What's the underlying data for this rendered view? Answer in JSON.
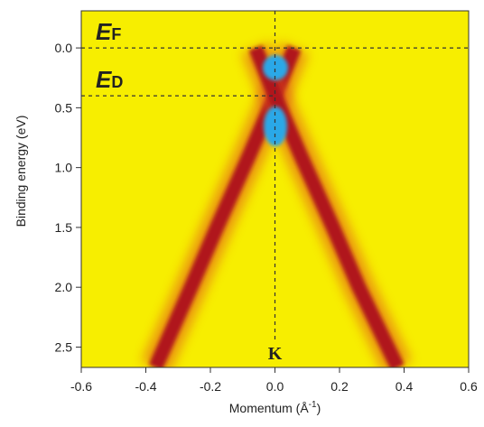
{
  "chart_data": {
    "type": "band-map",
    "xlabel": "Momentum (Å",
    "xlabel_sup": "-1",
    "xlabel_end": ")",
    "ylabel": "Binding energy (eV)",
    "xlim": [
      -0.6,
      0.6
    ],
    "xticks": [
      -0.6,
      -0.4,
      -0.2,
      {
        "value": 0,
        "label": "0.0"
      },
      0.2,
      0.4,
      0.6
    ],
    "ylim": [
      -0.31,
      2.67
    ],
    "y_inverted": true,
    "yticks": [
      {
        "value": 0,
        "label": "0.0"
      },
      0.5,
      {
        "value": 1,
        "label": "1.0"
      },
      1.5,
      {
        "value": 2,
        "label": "2.0"
      },
      2.5
    ],
    "background": "#f7ee00",
    "series": [
      {
        "color": "#b0141a",
        "x": [
          0.06,
          0,
          -0.08,
          -0.18,
          -0.26,
          -0.37
        ],
        "values": [
          0,
          0.4,
          0.9,
          1.5,
          2.0,
          2.67
        ]
      },
      {
        "color": "#b0141a",
        "x": [
          -0.06,
          0,
          0.08,
          0.18,
          0.26,
          0.38
        ],
        "values": [
          0,
          0.4,
          0.9,
          1.5,
          2.0,
          2.67
        ]
      }
    ],
    "annotations": [
      {
        "text": "E",
        "sub": "F",
        "y": 0
      },
      {
        "text": "E",
        "sub": "D",
        "y": 0.4
      }
    ],
    "point_label": {
      "text": "K",
      "x": 0
    }
  }
}
